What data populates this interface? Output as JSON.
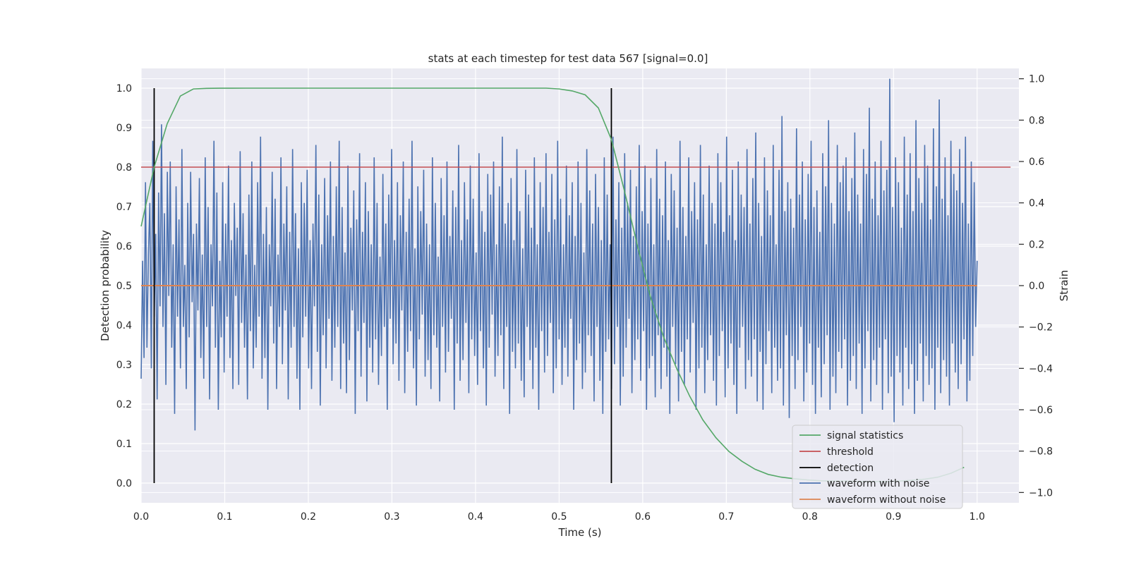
{
  "chart_data": {
    "type": "line",
    "title": "stats at each timestep for test data 567 [signal=0.0]",
    "xlabel": "Time (s)",
    "ylabel": "Detection probability",
    "ylabel_right": "Strain",
    "xlim": [
      0.0,
      1.05
    ],
    "ylim": [
      -0.05,
      1.05
    ],
    "ylim_right": [
      -1.05,
      1.05
    ],
    "xticks": [
      0.0,
      0.1,
      0.2,
      0.3,
      0.4,
      0.5,
      0.6,
      0.7,
      0.8,
      0.9,
      1.0
    ],
    "xtick_labels": [
      "0.0",
      "0.1",
      "0.2",
      "0.3",
      "0.4",
      "0.5",
      "0.6",
      "0.7",
      "0.8",
      "0.9",
      "1.0"
    ],
    "yticks": [
      0.0,
      0.1,
      0.2,
      0.3,
      0.4,
      0.5,
      0.6,
      0.7,
      0.8,
      0.9,
      1.0
    ],
    "ytick_labels": [
      "0.0",
      "0.1",
      "0.2",
      "0.3",
      "0.4",
      "0.5",
      "0.6",
      "0.7",
      "0.8",
      "0.9",
      "1.0"
    ],
    "yticks_right": [
      -1.0,
      -0.8,
      -0.6,
      -0.4,
      -0.2,
      0.0,
      0.2,
      0.4,
      0.6,
      0.8,
      1.0
    ],
    "ytick_labels_right": [
      "−1.0",
      "−0.8",
      "−0.6",
      "−0.4",
      "−0.2",
      "0.0",
      "0.2",
      "0.4",
      "0.6",
      "0.8",
      "1.0"
    ],
    "grid": true,
    "legend_position": "lower-right",
    "series": [
      {
        "name": "signal statistics",
        "axis": "left",
        "color": "#55a868",
        "x": [
          0.0,
          0.0156,
          0.0312,
          0.0469,
          0.0625,
          0.0781,
          0.0938,
          0.1094,
          0.125,
          0.1406,
          0.1562,
          0.1719,
          0.1875,
          0.2031,
          0.2188,
          0.2344,
          0.25,
          0.2656,
          0.2812,
          0.2969,
          0.3125,
          0.3281,
          0.3438,
          0.3594,
          0.375,
          0.3906,
          0.4062,
          0.4219,
          0.4375,
          0.4531,
          0.4688,
          0.4844,
          0.5,
          0.5156,
          0.5312,
          0.5469,
          0.5625,
          0.5781,
          0.5938,
          0.6094,
          0.625,
          0.6406,
          0.6562,
          0.6719,
          0.6875,
          0.7031,
          0.7188,
          0.7344,
          0.75,
          0.7656,
          0.7812,
          0.7969,
          0.8125,
          0.8281,
          0.8438,
          0.8594,
          0.875,
          0.8906,
          0.9062,
          0.9219,
          0.9375,
          0.9531,
          0.9688,
          0.9844
        ],
        "y": [
          0.65,
          0.8,
          0.91,
          0.98,
          0.998,
          0.9995,
          0.9998,
          0.9999,
          1.0,
          1.0,
          1.0,
          1.0,
          1.0,
          1.0,
          1.0,
          1.0,
          1.0,
          1.0,
          1.0,
          1.0,
          1.0,
          1.0,
          1.0,
          1.0,
          1.0,
          1.0,
          1.0,
          1.0,
          1.0,
          1.0,
          1.0,
          1.0,
          0.998,
          0.993,
          0.983,
          0.95,
          0.87,
          0.74,
          0.6,
          0.47,
          0.37,
          0.29,
          0.22,
          0.16,
          0.115,
          0.08,
          0.055,
          0.035,
          0.022,
          0.015,
          0.011,
          0.008,
          0.006,
          0.005,
          0.005,
          0.004,
          0.004,
          0.004,
          0.005,
          0.007,
          0.01,
          0.015,
          0.025,
          0.04
        ]
      },
      {
        "name": "threshold",
        "axis": "left",
        "color": "#c44e52",
        "x": [
          0.0,
          1.04
        ],
        "y": [
          0.8,
          0.8
        ]
      },
      {
        "name": "detection",
        "axis": "left",
        "color": "#000000",
        "segments": [
          {
            "x": 0.0156,
            "y0": 0.0,
            "y1": 1.0
          },
          {
            "x": 0.5625,
            "y0": 0.0,
            "y1": 1.0
          }
        ]
      },
      {
        "name": "waveform with noise",
        "axis": "right",
        "color": "#4c72b0",
        "x_start": 0.0,
        "x_end": 1.0,
        "y": [
          -0.45,
          0.12,
          -0.35,
          0.5,
          -0.3,
          0.15,
          0.4,
          -0.4,
          0.7,
          -0.15,
          0.25,
          -0.55,
          0.45,
          -0.1,
          0.78,
          -0.2,
          0.35,
          -0.48,
          0.55,
          -0.05,
          0.6,
          -0.3,
          0.2,
          -0.62,
          0.48,
          -0.15,
          0.32,
          -0.4,
          0.66,
          -0.2,
          0.1,
          -0.5,
          0.4,
          -0.25,
          0.55,
          -0.08,
          0.25,
          -0.7,
          0.3,
          -0.12,
          0.52,
          -0.35,
          0.15,
          -0.45,
          0.62,
          -0.2,
          0.38,
          -0.55,
          0.2,
          -0.1,
          0.7,
          -0.3,
          0.45,
          -0.6,
          0.12,
          -0.25,
          0.5,
          -0.42,
          0.3,
          -0.15,
          0.58,
          -0.35,
          0.22,
          -0.5,
          0.4,
          -0.05,
          0.28,
          -0.48,
          0.65,
          -0.18,
          0.35,
          -0.3,
          0.15,
          -0.55,
          0.44,
          -0.22,
          0.6,
          -0.4,
          0.1,
          -0.3,
          0.5,
          -0.15,
          0.72,
          -0.45,
          0.25,
          -0.35,
          0.38,
          -0.6,
          0.2,
          -0.1,
          0.55,
          -0.28,
          0.42,
          -0.5,
          0.15,
          -0.2,
          0.62,
          -0.38,
          0.3,
          -0.12,
          0.48,
          -0.55,
          0.26,
          -0.3,
          0.66,
          -0.2,
          0.35,
          -0.45,
          0.18,
          -0.6,
          0.5,
          -0.25,
          0.4,
          -0.15,
          0.56,
          -0.4,
          0.22,
          -0.5,
          0.3,
          -0.1,
          0.68,
          -0.32,
          0.44,
          -0.58,
          0.2,
          -0.24,
          0.52,
          -0.4,
          0.34,
          -0.16,
          0.6,
          -0.46,
          0.24,
          -0.3,
          0.48,
          -0.2,
          0.7,
          -0.5,
          0.38,
          -0.28,
          0.16,
          -0.52,
          0.58,
          -0.36,
          0.28,
          -0.12,
          0.46,
          -0.62,
          0.32,
          -0.22,
          0.64,
          -0.44,
          0.26,
          -0.18,
          0.5,
          -0.56,
          0.36,
          -0.3,
          0.2,
          -0.42,
          0.62,
          -0.26,
          0.4,
          -0.48,
          0.14,
          -0.34,
          0.54,
          -0.2,
          0.3,
          -0.6,
          0.44,
          -0.16,
          0.66,
          -0.38,
          0.22,
          -0.28,
          0.5,
          -0.46,
          0.34,
          -0.12,
          0.6,
          -0.52,
          0.26,
          -0.32,
          0.42,
          -0.22,
          0.7,
          -0.4,
          0.18,
          -0.58,
          0.48,
          -0.26,
          0.36,
          -0.14,
          0.56,
          -0.44,
          0.3,
          -0.36,
          0.2,
          -0.5,
          0.62,
          -0.24,
          0.4,
          -0.3,
          0.14,
          -0.56,
          0.52,
          -0.2,
          0.34,
          -0.42,
          0.6,
          -0.32,
          0.24,
          -0.16,
          0.46,
          -0.6,
          0.38,
          -0.28,
          0.68,
          -0.46,
          0.22,
          -0.36,
          0.5,
          -0.18,
          0.32,
          -0.52,
          0.58,
          -0.26,
          0.42,
          -0.34,
          0.16,
          -0.48,
          0.64,
          -0.22,
          0.36,
          -0.4,
          0.26,
          -0.58,
          0.54,
          -0.3,
          0.44,
          -0.14,
          0.6,
          -0.44,
          0.2,
          -0.34,
          0.48,
          -0.24,
          0.72,
          -0.5,
          0.3,
          -0.2,
          0.4,
          -0.62,
          0.52,
          -0.32,
          0.22,
          -0.4,
          0.66,
          -0.28,
          0.36,
          -0.46,
          0.18,
          -0.54,
          0.56,
          -0.2,
          0.44,
          -0.36,
          0.28,
          -0.5,
          0.62,
          -0.3,
          0.2,
          -0.6,
          0.5,
          -0.22,
          0.38,
          -0.42,
          0.64,
          -0.34,
          0.26,
          -0.18,
          0.54,
          -0.52,
          0.32,
          -0.4,
          0.7,
          -0.26,
          0.42,
          -0.48,
          0.2,
          -0.3,
          0.58,
          -0.44,
          0.34,
          -0.16,
          0.5,
          -0.6,
          0.24,
          -0.36,
          0.6,
          -0.28,
          0.4,
          -0.5,
          0.16,
          -0.42,
          0.66,
          -0.24,
          0.46,
          -0.34,
          0.3,
          -0.56,
          0.54,
          -0.2,
          0.38,
          -0.46,
          0.22,
          -0.62,
          0.62,
          -0.32,
          0.44,
          -0.26,
          0.2,
          -0.5,
          0.72,
          -0.38,
          0.32,
          -0.2,
          0.5,
          -0.58,
          0.28,
          -0.44,
          0.64,
          -0.3,
          0.4,
          -0.16,
          0.56,
          -0.52,
          0.24,
          -0.36,
          0.48,
          -0.26,
          0.68,
          -0.46,
          0.36,
          -0.22,
          0.58,
          -0.6,
          0.3,
          -0.4,
          0.52,
          -0.34,
          0.2,
          -0.54,
          0.66,
          -0.24,
          0.42,
          -0.5,
          0.34,
          -0.3,
          0.6,
          -0.44,
          0.22,
          -0.62,
          0.54,
          -0.2,
          0.46,
          -0.38,
          0.28,
          -0.56,
          0.7,
          -0.32,
          0.38,
          -0.48,
          0.24,
          -0.26,
          0.62,
          -0.42,
          0.36,
          -0.18,
          0.5,
          -0.6,
          0.32,
          -0.4,
          0.68,
          -0.3,
          0.44,
          -0.52,
          0.2,
          -0.36,
          0.58,
          -0.24,
          0.4,
          -0.46,
          0.3,
          -0.58,
          0.64,
          -0.34,
          0.5,
          -0.22,
          0.26,
          -0.54,
          0.72,
          -0.4,
          0.34,
          -0.28,
          0.56,
          -0.48,
          0.22,
          -0.62,
          0.6,
          -0.3,
          0.44,
          -0.2,
          0.38,
          -0.5,
          0.66,
          -0.36,
          0.3,
          -0.44,
          0.52,
          -0.26,
          0.74,
          -0.56,
          0.4,
          -0.32,
          0.24,
          -0.6,
          0.62,
          -0.38,
          0.46,
          -0.22,
          0.34,
          -0.52,
          0.68,
          -0.3,
          0.2,
          -0.46,
          0.56,
          -0.4,
          0.82,
          -0.58,
          0.36,
          -0.24,
          0.5,
          -0.64,
          0.42,
          -0.34,
          0.28,
          -0.5,
          0.76,
          -0.36,
          0.44,
          -0.2,
          0.6,
          -0.56,
          0.32,
          -0.42,
          0.54,
          -0.28,
          0.7,
          -0.48,
          0.38,
          -0.62,
          0.46,
          -0.3,
          0.26,
          -0.54,
          0.64,
          -0.38,
          0.48,
          -0.24,
          0.8,
          -0.6,
          0.4,
          -0.44,
          0.3,
          -0.52,
          0.68,
          -0.32,
          0.5,
          -0.4,
          0.58,
          -0.26,
          0.62,
          -0.58,
          0.36,
          -0.46,
          0.52,
          -0.34,
          0.74,
          -0.5,
          0.44,
          -0.28,
          0.3,
          -0.62,
          0.66,
          -0.4,
          0.54,
          -0.22,
          0.86,
          -0.56,
          0.42,
          -0.36,
          0.6,
          -0.48,
          0.34,
          -0.3,
          0.7,
          -0.6,
          0.46,
          -0.26,
          0.56,
          -0.52,
          1.0,
          -0.44,
          0.38,
          -0.66,
          0.62,
          -0.34,
          0.5,
          -0.42,
          0.28,
          -0.58,
          0.72,
          -0.3,
          0.44,
          -0.5,
          0.64,
          -0.38,
          0.36,
          -0.62,
          0.8,
          -0.46,
          0.52,
          -0.28,
          0.4,
          -0.56,
          0.68,
          -0.34,
          0.58,
          -0.48,
          0.32,
          -0.4,
          0.76,
          -0.6,
          0.48,
          -0.3,
          0.9,
          -0.52,
          0.42,
          -0.36,
          0.62,
          -0.44,
          0.34,
          -0.58,
          0.7,
          -0.28,
          0.54,
          -0.42,
          0.46,
          -0.5,
          0.66,
          -0.38,
          0.4,
          -0.26,
          0.72,
          -0.56,
          0.3,
          -0.46,
          0.6,
          -0.34,
          0.5,
          -0.2,
          0.12
        ]
      },
      {
        "name": "waveform without noise",
        "axis": "right",
        "color": "#dd8452",
        "x": [
          0.0,
          1.0
        ],
        "y": [
          0.0,
          0.0
        ]
      }
    ]
  }
}
